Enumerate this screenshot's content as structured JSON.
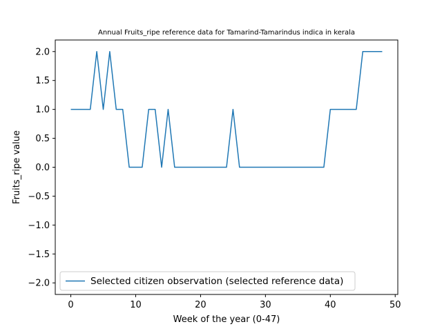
{
  "chart_data": {
    "type": "line",
    "title": "Annual Fruits_ripe reference data for Tamarind-Tamarindus indica in kerala",
    "xlabel": "Week of the year (0-47)",
    "ylabel": "Fruits_ripe value",
    "xlim": [
      -2.4,
      50.4
    ],
    "ylim": [
      -2.2,
      2.2
    ],
    "x_ticks": [
      0,
      10,
      20,
      30,
      40,
      50
    ],
    "y_ticks": [
      -2.0,
      -1.5,
      -1.0,
      -0.5,
      0.0,
      0.5,
      1.0,
      1.5,
      2.0
    ],
    "x_tick_labels": [
      "0",
      "10",
      "20",
      "30",
      "40",
      "50"
    ],
    "y_tick_labels": [
      "−2.0",
      "−1.5",
      "−1.0",
      "−0.5",
      "0.0",
      "0.5",
      "1.0",
      "1.5",
      "2.0"
    ],
    "grid": false,
    "legend_position": "lower-left",
    "series": [
      {
        "name": "Selected citizen observation (selected reference data)",
        "color": "#1f77b4",
        "x": [
          0,
          1,
          2,
          3,
          4,
          5,
          6,
          7,
          8,
          9,
          10,
          11,
          12,
          13,
          14,
          15,
          16,
          17,
          18,
          19,
          20,
          21,
          22,
          23,
          24,
          25,
          26,
          27,
          28,
          29,
          30,
          31,
          32,
          33,
          34,
          35,
          36,
          37,
          38,
          39,
          40,
          41,
          42,
          43,
          44,
          45,
          46,
          47,
          48
        ],
        "y": [
          1,
          1,
          1,
          1,
          2,
          1,
          2,
          1,
          1,
          0,
          0,
          0,
          1,
          1,
          0,
          1,
          0,
          0,
          0,
          0,
          0,
          0,
          0,
          0,
          0,
          1,
          0,
          0,
          0,
          0,
          0,
          0,
          0,
          0,
          0,
          0,
          0,
          0,
          0,
          0,
          1,
          1,
          1,
          1,
          1,
          2,
          2,
          2,
          2
        ]
      }
    ]
  }
}
